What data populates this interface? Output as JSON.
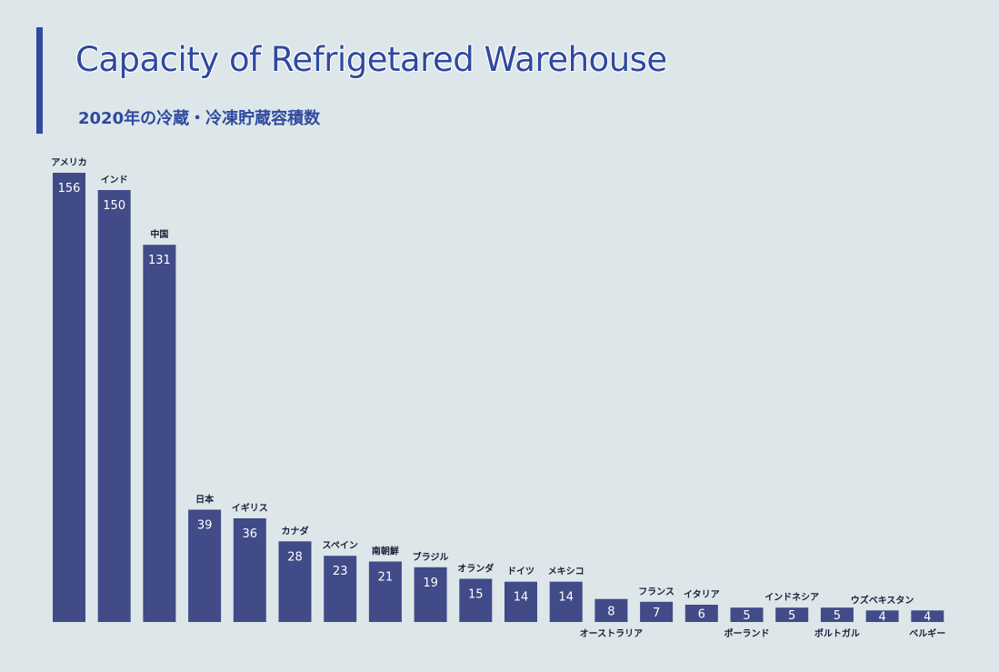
{
  "header": {
    "title": "Capacity of Refrigetared Warehouse",
    "subtitle": "2020年の冷蔵・冷凍貯蔵容積数"
  },
  "colors": {
    "accent": "#2f4a9e",
    "bar": "#414b88",
    "background": "#dde6e9"
  },
  "chart_data": {
    "type": "bar",
    "title": "Capacity of Refrigetared Warehouse",
    "subtitle": "2020年の冷蔵・冷凍貯蔵容積数",
    "xlabel": "",
    "ylabel": "",
    "ylim": [
      0,
      156
    ],
    "grid": false,
    "categories": [
      "アメリカ",
      "インド",
      "中国",
      "日本",
      "イギリス",
      "カナダ",
      "スペイン",
      "南朝鮮",
      "ブラジル",
      "オランダ",
      "ドイツ",
      "メキシコ",
      "オーストラリア",
      "フランス",
      "イタリア",
      "ポーランド",
      "インドネシア",
      "ポルトガル",
      "ウズベキスタン",
      "ベルギー"
    ],
    "values": [
      156,
      150,
      131,
      39,
      36,
      28,
      23,
      21,
      19,
      15,
      14,
      14,
      8,
      7,
      6,
      5,
      5,
      5,
      4,
      4
    ],
    "label_position": [
      "above",
      "above",
      "above",
      "above",
      "above",
      "above",
      "above",
      "above",
      "above",
      "above",
      "above",
      "above",
      "below",
      "above",
      "above",
      "below",
      "above",
      "below",
      "above",
      "below"
    ]
  }
}
